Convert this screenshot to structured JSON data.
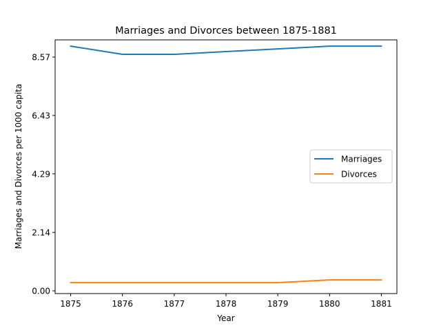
{
  "chart_data": {
    "type": "line",
    "title": "Marriages and Divorces between 1875-1881",
    "xlabel": "Year",
    "ylabel": "Marriages and Divorces per 1000 capita",
    "x": [
      1875,
      1876,
      1877,
      1878,
      1879,
      1880,
      1881
    ],
    "xticks": [
      "1875",
      "1876",
      "1877",
      "1878",
      "1879",
      "1880",
      "1881"
    ],
    "yticks": [
      0.0,
      2.14,
      4.29,
      6.43,
      8.57
    ],
    "ytick_labels": [
      "0.00",
      "2.14",
      "4.29",
      "6.43",
      "8.57"
    ],
    "xlim": [
      1874.7,
      1881.3
    ],
    "ylim": [
      -0.1,
      9.2
    ],
    "grid": false,
    "legend_position": "center-right",
    "series": [
      {
        "name": "Marriages",
        "color": "#1f77b4",
        "values": [
          8.97,
          8.67,
          8.67,
          8.77,
          8.87,
          8.97,
          8.97
        ]
      },
      {
        "name": "Divorces",
        "color": "#ff7f0e",
        "values": [
          0.3,
          0.3,
          0.3,
          0.3,
          0.3,
          0.4,
          0.4
        ]
      }
    ]
  }
}
